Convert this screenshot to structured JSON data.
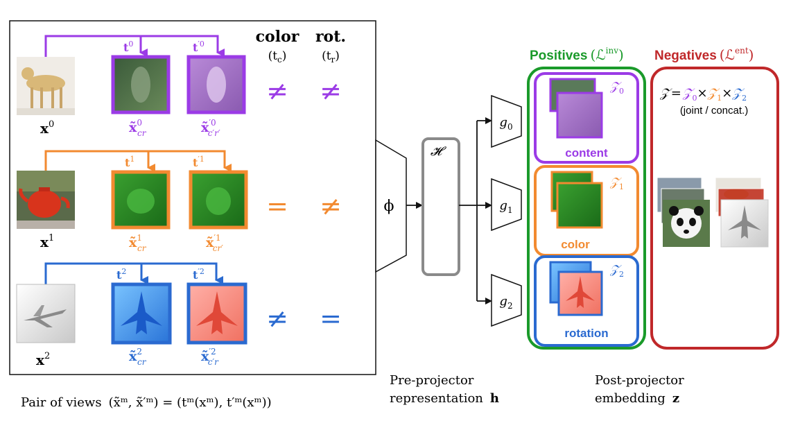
{
  "header": {
    "color_label": "color",
    "color_sym": "(t",
    "color_sub": "c",
    "rot_label": "rot.",
    "rot_sym": "(t",
    "rot_sub": "r",
    "close_paren": ")"
  },
  "rows": [
    {
      "id": "x0",
      "input_label": "x",
      "input_sup": "0",
      "t_label": "t",
      "t_sup": "0",
      "tp_label": "t",
      "tp_sup": "′0",
      "view1_label": "x̃",
      "view1_sup": "0",
      "view1_sub": "cr",
      "view2_label": "x̃",
      "view2_sup": "′0",
      "view2_sub": "c′r′",
      "color_rel": "≠",
      "rot_rel": "≠",
      "accent": "#9b3be6"
    },
    {
      "id": "x1",
      "input_label": "x",
      "input_sup": "1",
      "t_label": "t",
      "t_sup": "1",
      "tp_label": "t",
      "tp_sup": "′1",
      "view1_label": "x̃",
      "view1_sup": "1",
      "view1_sub": "cr",
      "view2_label": "x̃",
      "view2_sup": "′1",
      "view2_sub": "cr′",
      "color_rel": "=",
      "rot_rel": "≠",
      "accent": "#f28a30"
    },
    {
      "id": "x2",
      "input_label": "x",
      "input_sup": "2",
      "t_label": "t",
      "t_sup": "2",
      "tp_label": "t",
      "tp_sup": "′2",
      "view1_label": "x̃",
      "view1_sup": "2",
      "view1_sub": "cr",
      "view2_label": "x̃",
      "view2_sup": "′2",
      "view2_sub": "c′r",
      "color_rel": "≠",
      "rot_rel": "=",
      "accent": "#2a6ad0"
    }
  ],
  "captions": {
    "pair_prefix": "Pair of views",
    "pair_formula": "(x̃ᵐ, x̃′ᵐ) = (tᵐ(xᵐ), t′ᵐ(xᵐ))",
    "pre_line1": "Pre-projector",
    "pre_line2": "representation",
    "pre_sym": "h",
    "post_line1": "Post-projector",
    "post_line2": "embedding",
    "post_sym": "z"
  },
  "encoder": {
    "phi": "ϕ",
    "h_symbol": "𝓗"
  },
  "projectors": [
    {
      "label": "g",
      "sub": "0"
    },
    {
      "label": "g",
      "sub": "1"
    },
    {
      "label": "g",
      "sub": "2"
    }
  ],
  "positives": {
    "title": "Positives",
    "loss": "(ℒ",
    "loss_sup": "inv",
    "loss_close": ")",
    "color": "#1a9a2a",
    "groups": [
      {
        "z_label": "𝒵",
        "z_sub": "0",
        "name": "content",
        "color": "#9b3be6"
      },
      {
        "z_label": "𝒵",
        "z_sub": "1",
        "name": "color",
        "color": "#f28a30"
      },
      {
        "z_label": "𝒵",
        "z_sub": "2",
        "name": "rotation",
        "color": "#2a6ad0"
      }
    ]
  },
  "negatives": {
    "title": "Negatives",
    "loss": "(ℒ",
    "loss_sup": "ent",
    "loss_close": ")",
    "color": "#c0282a",
    "formula": {
      "z": "𝒵",
      "eq": "=",
      "z0": "𝒵",
      "s0": "0",
      "x1": "×",
      "z1": "𝒵",
      "s1": "1",
      "x2": "×",
      "z2": "𝒵",
      "s2": "2"
    },
    "note": "(joint / concat.)"
  }
}
